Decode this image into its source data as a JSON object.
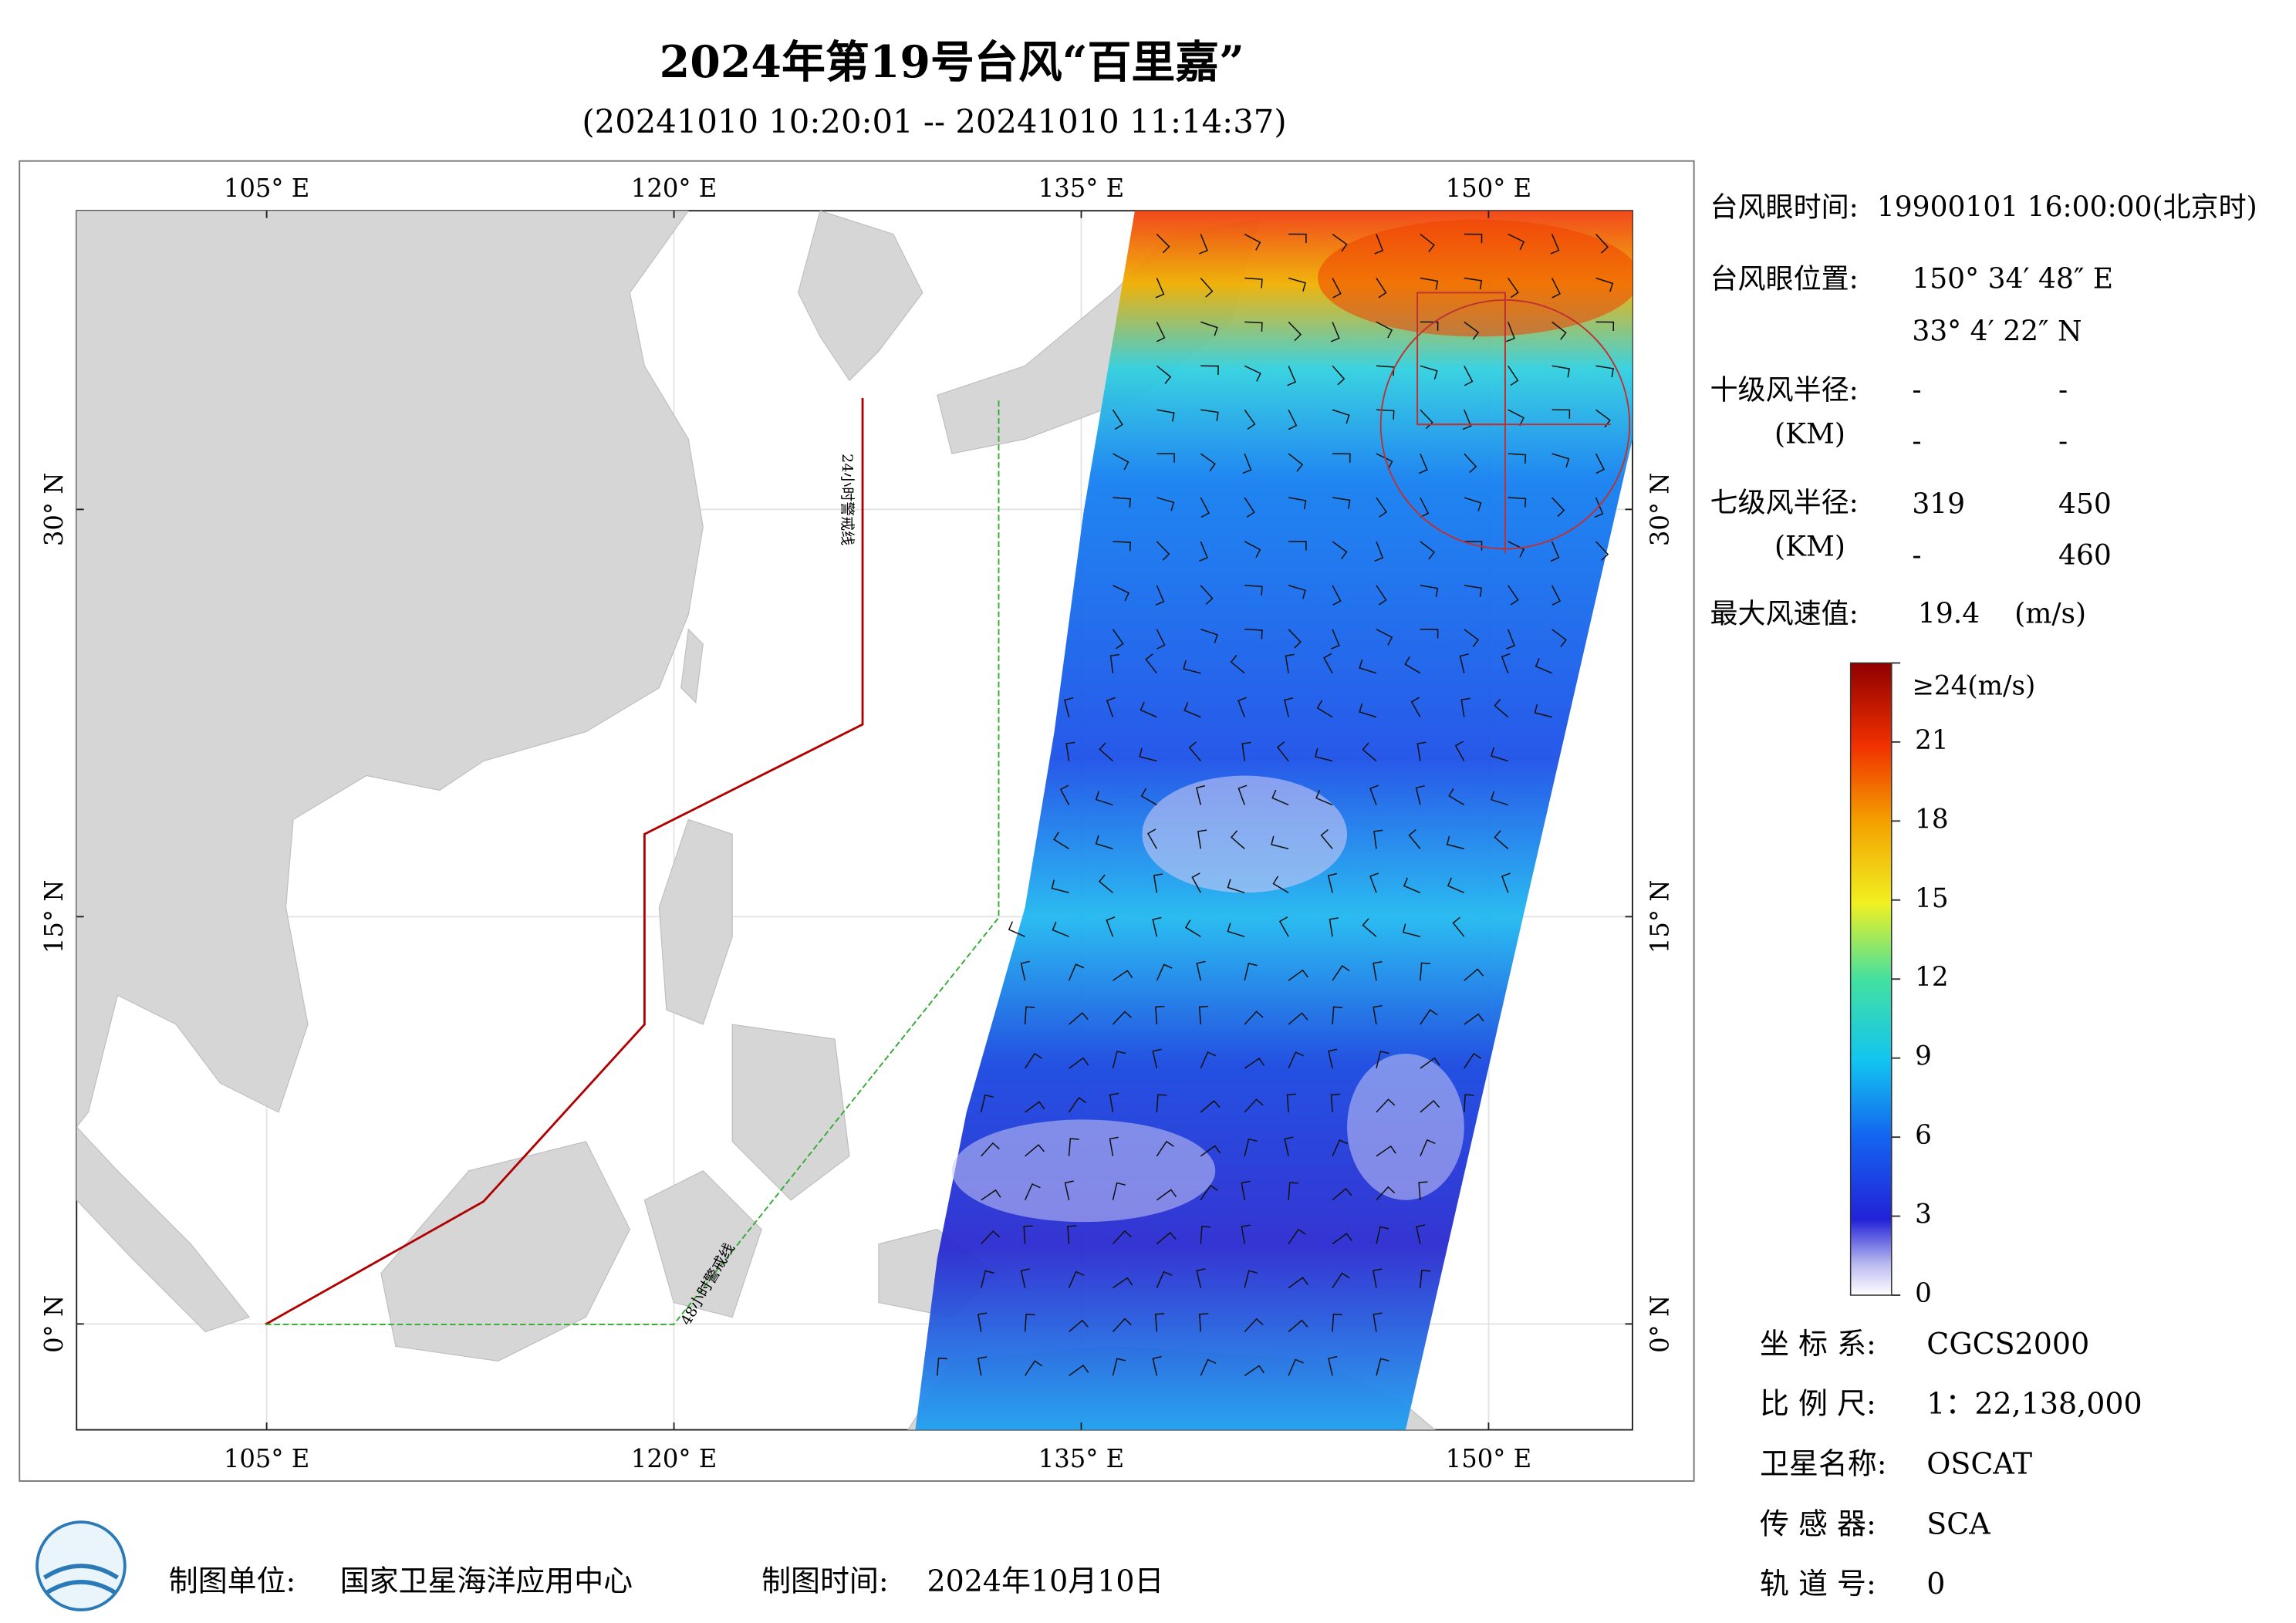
{
  "title": "2024年第19号台风“百里嘉”",
  "subtitle": "(20241010 10:20:01 -- 20241010 11:14:37)",
  "map": {
    "xlim": [
      98,
      155.3
    ],
    "ylim": [
      -3.9,
      41
    ],
    "xticks": [
      {
        "value": 105,
        "label": "105° E"
      },
      {
        "value": 120,
        "label": "120° E"
      },
      {
        "value": 135,
        "label": "135° E"
      },
      {
        "value": 150,
        "label": "150° E"
      }
    ],
    "yticks": [
      {
        "value": 0,
        "label": "0° N"
      },
      {
        "value": 15,
        "label": "15° N"
      },
      {
        "value": 30,
        "label": "30° N"
      }
    ],
    "grid": true,
    "warning_lines": [
      "24小时警戒线",
      "48小时警戒线"
    ]
  },
  "info": {
    "eye_time_label": "台风眼时间:",
    "eye_time": "19900101 16:00:00(北京时)",
    "eye_pos_label": "台风眼位置:",
    "eye_lon": "150° 34′ 48″ E",
    "eye_lat": "33° 4′ 22″ N",
    "r10_label": "十级风半径:",
    "r10_unit": "(KM)",
    "r10": [
      [
        "-",
        "-"
      ],
      [
        "-",
        "-"
      ]
    ],
    "r7_label": "七级风半径:",
    "r7_unit": "(KM)",
    "r7": [
      [
        319,
        450
      ],
      [
        "-",
        460
      ]
    ],
    "max_label": "最大风速值:",
    "max_value": 19.4,
    "max_unit": "(m/s)"
  },
  "colorbar": {
    "range": [
      0,
      24
    ],
    "ticks": [
      0,
      3,
      6,
      9,
      12,
      15,
      18,
      21,
      {
        "value": 24,
        "label": "≥24(m/s)"
      }
    ]
  },
  "meta": [
    [
      "坐 标 系:",
      "CGCS2000"
    ],
    [
      "比 例 尺:",
      "1：22,138,000"
    ],
    [
      "卫星名称:",
      "OSCAT"
    ],
    [
      "传 感 器:",
      "SCA"
    ],
    [
      "轨 道 号:",
      0
    ]
  ],
  "footer": {
    "unit_label": "制图单位:",
    "unit": "国家卫星海洋应用中心",
    "time_label": "制图时间:",
    "time": "2024年10月10日"
  }
}
